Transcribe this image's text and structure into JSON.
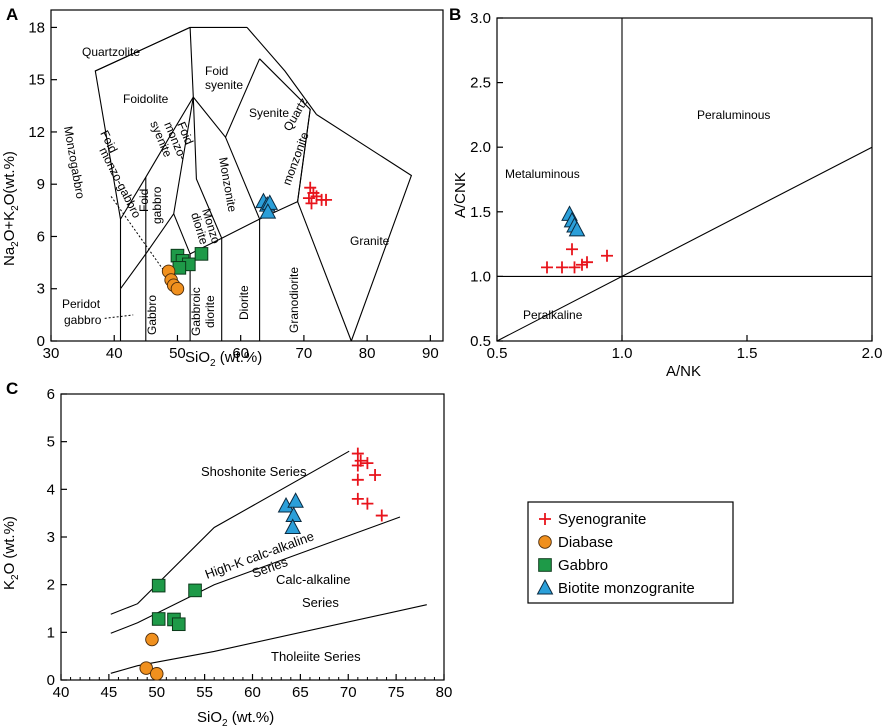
{
  "legend": [
    {
      "name": "Syenogranite",
      "marker": "plus",
      "color": "#e8141c"
    },
    {
      "name": "Diabase",
      "marker": "circle",
      "color": "#f0901e"
    },
    {
      "name": "Gabbro",
      "marker": "square",
      "color": "#1e9a48"
    },
    {
      "name": "Biotite  monzogranite",
      "marker": "triangle",
      "color": "#2b9fd9"
    }
  ],
  "chart_data": [
    {
      "panel": "A",
      "type": "scatter",
      "xlabel_main": "SiO",
      "xlabel_sub": "2",
      "xlabel_tail": "  (wt.%)",
      "ylabel": "Na2O+K2O(wt.%)",
      "ylabel_parts": [
        "Na",
        "2",
        "O+K",
        "2",
        "O(wt.%)"
      ],
      "xlim": [
        30,
        92
      ],
      "ylim": [
        0,
        19
      ],
      "xticks": [
        "30",
        "40",
        "50",
        "60",
        "70",
        "80",
        "90"
      ],
      "yticks": [
        "0",
        "3",
        "6",
        "9",
        "12",
        "15",
        "18"
      ],
      "field_labels": [
        "Quartzolite",
        "Foidolite",
        "Foid",
        "syenite",
        "Syenite",
        "Foid",
        "monzo-gabbro",
        "Foid",
        "monzo-",
        "syenite",
        "Monzonite",
        "Quartz",
        "monzonite",
        "Foid",
        "gabbro",
        "Monzo",
        "diorite",
        "Granite",
        "Monzogabbro",
        "Peridot",
        "gabbro",
        "Gabbro",
        "Gabbroic",
        "diorite",
        "Diorite",
        "Granodiorite"
      ],
      "series": [
        {
          "name": "Syenogranite",
          "points": [
            [
              71.0,
              8.8
            ],
            [
              71.5,
              8.5
            ],
            [
              70.8,
              8.2
            ],
            [
              72.0,
              8.3
            ],
            [
              72.8,
              8.1
            ],
            [
              71.2,
              7.9
            ],
            [
              73.5,
              8.1
            ]
          ]
        },
        {
          "name": "Biotite  monzogranite",
          "points": [
            [
              63.6,
              8.0
            ],
            [
              64.2,
              7.8
            ],
            [
              64.6,
              7.9
            ],
            [
              64.3,
              7.4
            ]
          ]
        },
        {
          "name": "Gabbro",
          "points": [
            [
              50.0,
              4.9
            ],
            [
              50.8,
              4.6
            ],
            [
              51.8,
              4.4
            ],
            [
              50.3,
              4.2
            ],
            [
              53.8,
              5.0
            ]
          ]
        },
        {
          "name": "Diabase",
          "points": [
            [
              48.6,
              4.0
            ],
            [
              49.0,
              3.5
            ],
            [
              49.4,
              3.2
            ],
            [
              50.0,
              3.0
            ]
          ]
        }
      ]
    },
    {
      "panel": "B",
      "type": "scatter",
      "xlabel": "A/NK",
      "ylabel": "A/CNK",
      "xlim": [
        0.5,
        2.0
      ],
      "ylim": [
        0.5,
        3.0
      ],
      "xticks": [
        "0.5",
        "1.0",
        "1.5",
        "2.0"
      ],
      "yticks": [
        "0.5",
        "1.0",
        "1.5",
        "2.0",
        "2.5",
        "3.0"
      ],
      "field_labels": [
        "Peraluminous",
        "Metaluminous",
        "Peralkaline"
      ],
      "series": [
        {
          "name": "Syenogranite",
          "points": [
            [
              0.7,
              1.07
            ],
            [
              0.76,
              1.07
            ],
            [
              0.8,
              1.21
            ],
            [
              0.81,
              1.07
            ],
            [
              0.84,
              1.09
            ],
            [
              0.86,
              1.11
            ],
            [
              0.94,
              1.16
            ]
          ]
        },
        {
          "name": "Biotite  monzogranite",
          "points": [
            [
              0.79,
              1.48
            ],
            [
              0.8,
              1.43
            ],
            [
              0.81,
              1.39
            ],
            [
              0.82,
              1.36
            ]
          ]
        }
      ]
    },
    {
      "panel": "C",
      "type": "scatter",
      "xlabel_main": "SiO",
      "xlabel_sub": "2",
      "xlabel_tail": "  (wt.%)",
      "ylabel_main": "K",
      "ylabel_sub": "2",
      "ylabel_tail": "O (wt.%)",
      "xlim": [
        40,
        80
      ],
      "ylim": [
        0,
        6
      ],
      "xticks": [
        "40",
        "45",
        "50",
        "55",
        "60",
        "65",
        "70",
        "75",
        "80"
      ],
      "yticks": [
        "0",
        "1",
        "2",
        "3",
        "4",
        "5",
        "6"
      ],
      "series_labels": [
        "Shoshonite Series",
        "High-K calc-alkaline",
        "Series",
        "Calc-alkaline",
        "Series",
        "Tholeiite Series"
      ],
      "series": [
        {
          "name": "Syenogranite",
          "points": [
            [
              71.0,
              4.75
            ],
            [
              71.3,
              4.6
            ],
            [
              71.0,
              4.5
            ],
            [
              72.0,
              4.55
            ],
            [
              72.8,
              4.3
            ],
            [
              71.0,
              4.2
            ],
            [
              71.0,
              3.8
            ],
            [
              72.0,
              3.7
            ],
            [
              73.5,
              3.45
            ]
          ]
        },
        {
          "name": "Biotite  monzogranite",
          "points": [
            [
              63.5,
              3.65
            ],
            [
              64.5,
              3.75
            ],
            [
              64.3,
              3.45
            ],
            [
              64.2,
              3.2
            ]
          ]
        },
        {
          "name": "Gabbro",
          "points": [
            [
              50.2,
              1.98
            ],
            [
              54.0,
              1.88
            ],
            [
              50.2,
              1.28
            ],
            [
              51.8,
              1.27
            ],
            [
              52.3,
              1.17
            ]
          ]
        },
        {
          "name": "Diabase",
          "points": [
            [
              49.5,
              0.85
            ],
            [
              48.9,
              0.25
            ],
            [
              50.0,
              0.13
            ]
          ]
        }
      ]
    }
  ]
}
